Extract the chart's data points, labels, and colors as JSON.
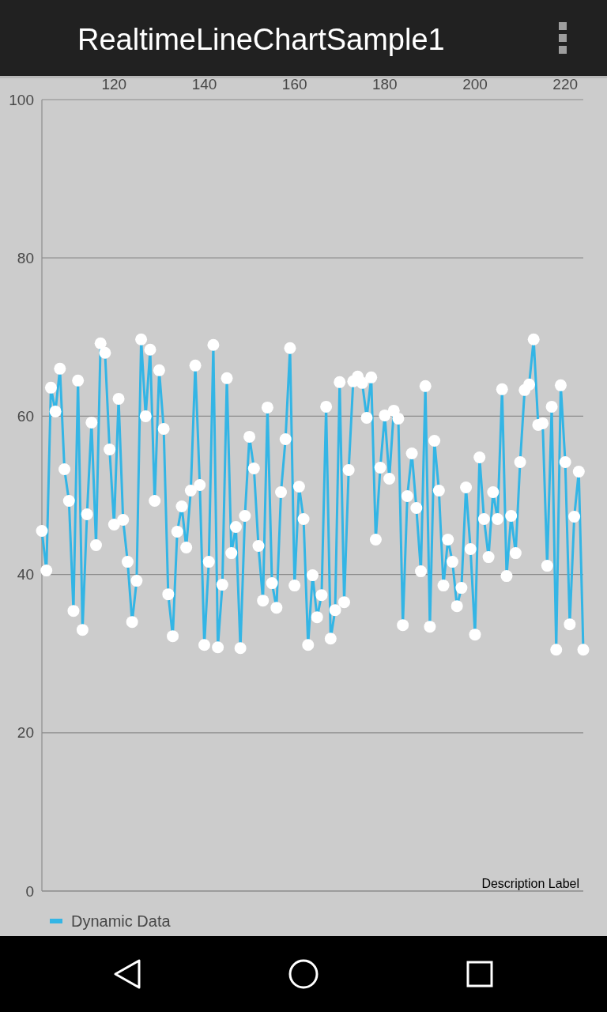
{
  "chart_data": {
    "type": "line",
    "title": "RealtimeLineChartSample1",
    "x": [
      104,
      105,
      106,
      107,
      108,
      109,
      110,
      111,
      112,
      113,
      114,
      115,
      116,
      117,
      118,
      119,
      120,
      121,
      122,
      123,
      124,
      125,
      126,
      127,
      128,
      129,
      130,
      131,
      132,
      133,
      134,
      135,
      136,
      137,
      138,
      139,
      140,
      141,
      142,
      143,
      144,
      145,
      146,
      147,
      148,
      149,
      150,
      151,
      152,
      153,
      154,
      155,
      156,
      157,
      158,
      159,
      160,
      161,
      162,
      163,
      164,
      165,
      166,
      167,
      168,
      169,
      170,
      171,
      172,
      173,
      174,
      175,
      176,
      177,
      178,
      179,
      180,
      181,
      182,
      183,
      184,
      185,
      186,
      187,
      188,
      189,
      190,
      191,
      192,
      193,
      194,
      195,
      196,
      197,
      198,
      199,
      200,
      201,
      202,
      203,
      204,
      205,
      206,
      207,
      208,
      209,
      210,
      211,
      212,
      213,
      214,
      215,
      216,
      217,
      218,
      219,
      220,
      221,
      222,
      223,
      224
    ],
    "series": [
      {
        "name": "Dynamic Data",
        "color": "#33b5e5",
        "values": [
          45.5,
          40.5,
          63.6,
          60.6,
          66.0,
          53.3,
          49.3,
          35.4,
          64.5,
          33.0,
          47.6,
          59.2,
          43.7,
          69.2,
          68.0,
          55.8,
          46.3,
          62.2,
          46.9,
          41.6,
          34.0,
          39.2,
          69.7,
          60.0,
          68.4,
          49.3,
          65.8,
          58.4,
          37.5,
          32.2,
          45.4,
          48.6,
          43.4,
          50.6,
          66.4,
          51.3,
          31.1,
          41.6,
          69.0,
          30.8,
          38.7,
          64.8,
          42.7,
          46.0,
          30.7,
          47.4,
          57.4,
          53.4,
          43.6,
          36.7,
          61.1,
          38.9,
          35.8,
          50.4,
          57.1,
          68.6,
          38.6,
          51.1,
          47.0,
          31.1,
          39.9,
          34.6,
          37.4,
          61.2,
          31.9,
          35.5,
          64.3,
          36.5,
          53.2,
          64.4,
          65.0,
          64.2,
          59.8,
          64.9,
          44.4,
          53.5,
          60.1,
          52.1,
          60.7,
          59.7,
          33.6,
          49.9,
          55.3,
          48.4,
          40.4,
          63.8,
          33.4,
          56.9,
          50.6,
          38.6,
          44.4,
          41.6,
          36.0,
          38.3,
          51.0,
          43.2,
          32.4,
          54.8,
          47.0,
          42.2,
          50.4,
          47.0,
          63.4,
          39.8,
          47.4,
          42.7,
          54.2,
          63.3,
          64.0,
          69.7,
          58.9,
          59.1,
          41.1,
          61.2,
          30.5,
          63.9,
          54.2,
          33.7,
          47.3,
          53.0,
          30.5
        ]
      }
    ],
    "xlim": [
      104,
      224
    ],
    "xticks": [
      120,
      140,
      160,
      180,
      200,
      220
    ],
    "ylim": [
      0,
      100
    ],
    "yticks": [
      0,
      20,
      40,
      60,
      80,
      100
    ],
    "grid": "y",
    "legend": "bottom left",
    "marker": "circle",
    "annotations": [
      "Description Label"
    ]
  }
}
